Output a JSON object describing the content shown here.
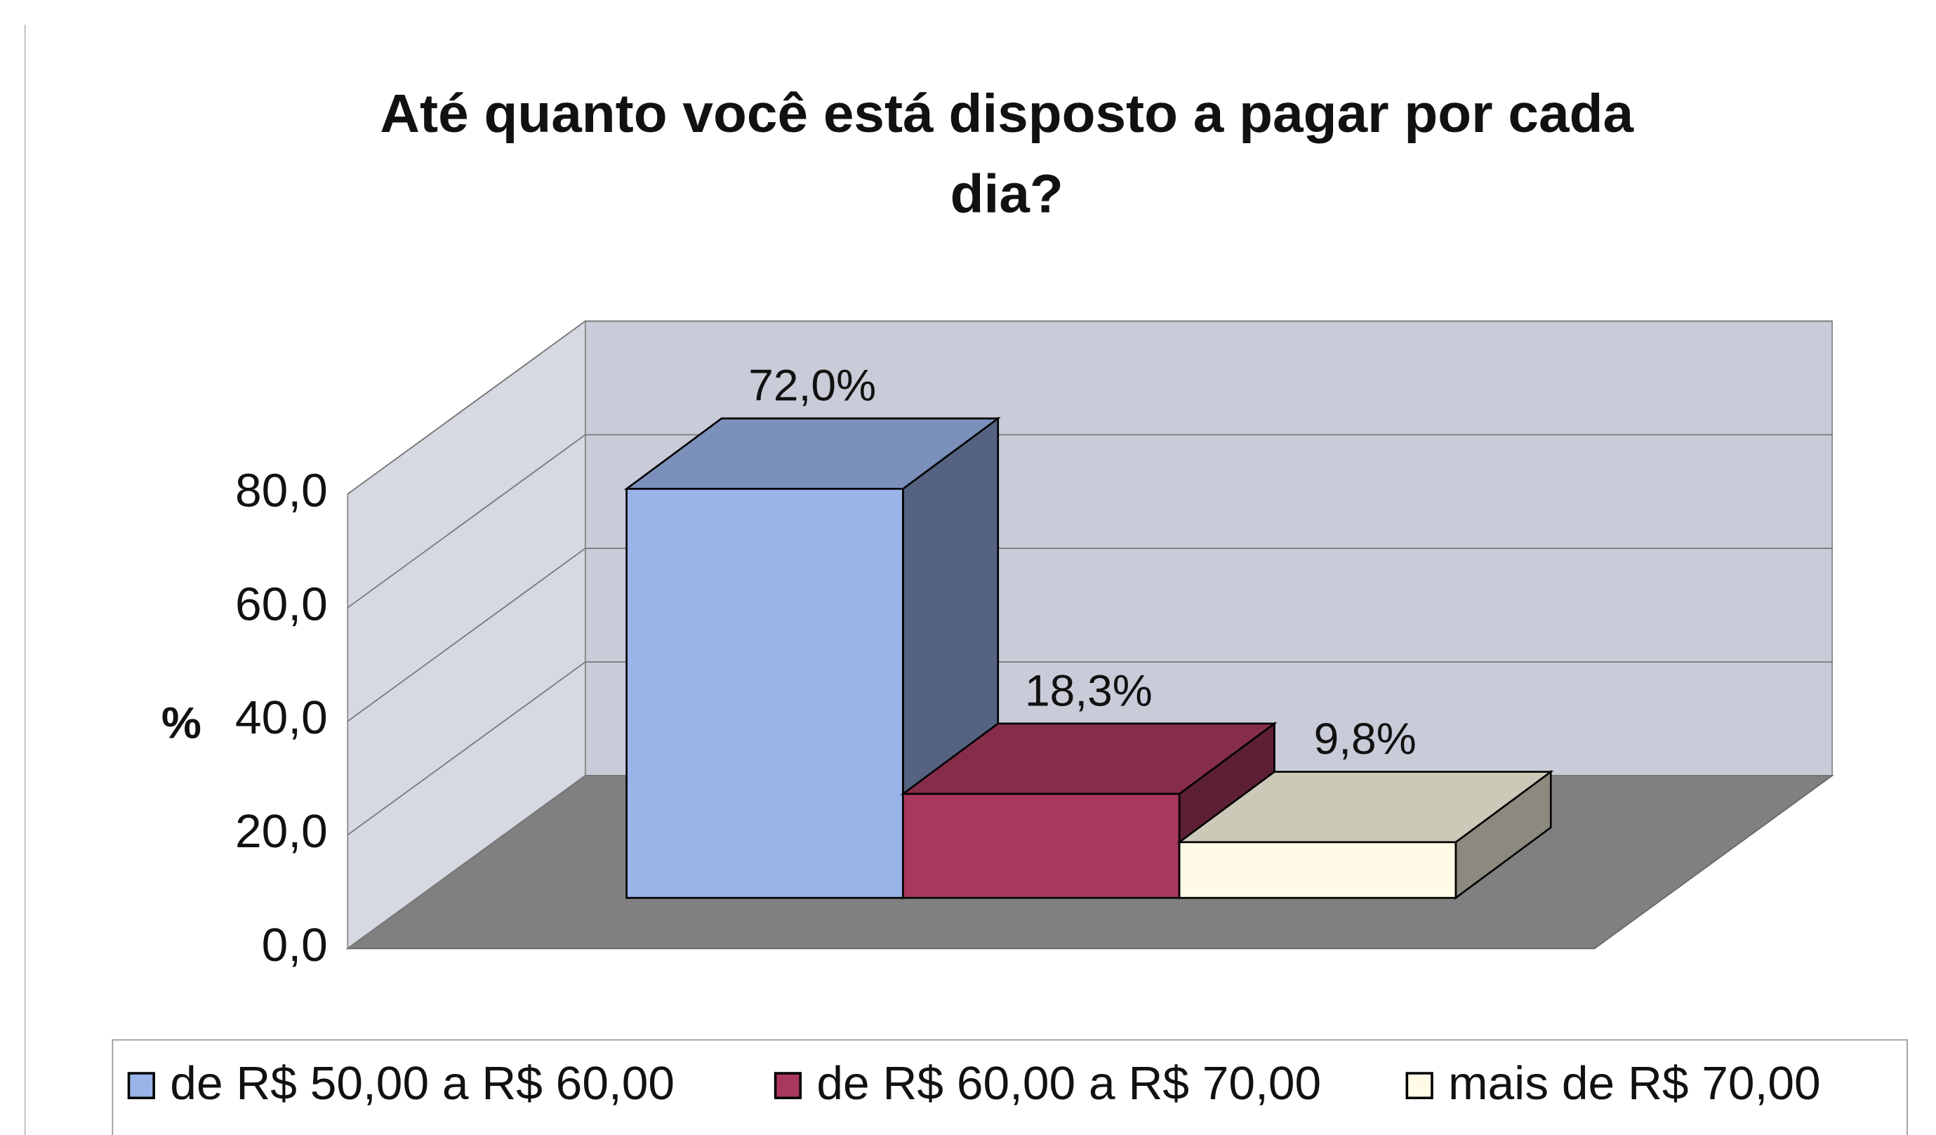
{
  "chart_data": {
    "type": "bar3d",
    "title": "Até quanto você está disposto a pagar por cada dia?",
    "ylabel": "%",
    "ylim": [
      0,
      80
    ],
    "yticks": [
      {
        "value": 0,
        "label": "0,0"
      },
      {
        "value": 20,
        "label": "20,0"
      },
      {
        "value": 40,
        "label": "40,0"
      },
      {
        "value": 60,
        "label": "60,0"
      },
      {
        "value": 80,
        "label": "80,0"
      }
    ],
    "grid": true,
    "legend": "bottom",
    "series": [
      {
        "name": "de R$ 50,00 a R$ 60,00",
        "color": "#9ab4ea",
        "values": [
          72.0
        ],
        "value_labels": [
          "72,0%"
        ]
      },
      {
        "name": "de R$ 60,00 a R$ 70,00",
        "color": "#a8385c",
        "values": [
          18.3
        ],
        "value_labels": [
          "18,3%"
        ]
      },
      {
        "name": "mais de R$ 70,00",
        "color": "#fffbe6",
        "values": [
          9.8
        ],
        "value_labels": [
          "9,8%"
        ]
      }
    ]
  }
}
